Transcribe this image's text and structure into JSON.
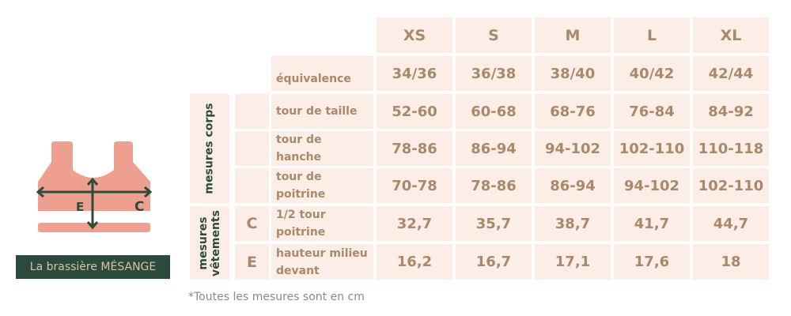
{
  "product_label": "La brassière MÉSANGE",
  "diagram": {
    "markers": [
      "E",
      "C"
    ]
  },
  "table": {
    "sizes": [
      "XS",
      "S",
      "M",
      "L",
      "XL"
    ],
    "groups": [
      {
        "label": "mesures corps"
      },
      {
        "label": "mesures vêtements"
      }
    ],
    "rows": [
      {
        "label": "équivalence",
        "letter": "",
        "values": [
          "34/36",
          "36/38",
          "38/40",
          "40/42",
          "42/44"
        ]
      },
      {
        "label": "tour de taille",
        "letter": "",
        "values": [
          "52-60",
          "60-68",
          "68-76",
          "76-84",
          "84-92"
        ]
      },
      {
        "label": "tour de hanche",
        "letter": "",
        "values": [
          "78-86",
          "86-94",
          "94-102",
          "102-110",
          "110-118"
        ]
      },
      {
        "label": "tour de poitrine",
        "letter": "",
        "values": [
          "70-78",
          "78-86",
          "86-94",
          "94-102",
          "102-110"
        ]
      },
      {
        "label": "1/2 tour poitrine",
        "letter": "C",
        "values": [
          "32,7",
          "35,7",
          "38,7",
          "41,7",
          "44,7"
        ]
      },
      {
        "label": "hauteur milieu devant",
        "letter": "E",
        "values": [
          "16,2",
          "16,7",
          "17,1",
          "17,6",
          "18"
        ]
      }
    ]
  },
  "footnote": "*Toutes les mesures sont en cm",
  "colors": {
    "cell": "#fcede6",
    "text": "#a8896a",
    "green": "#2b4a3c",
    "garment": "#eea090"
  }
}
